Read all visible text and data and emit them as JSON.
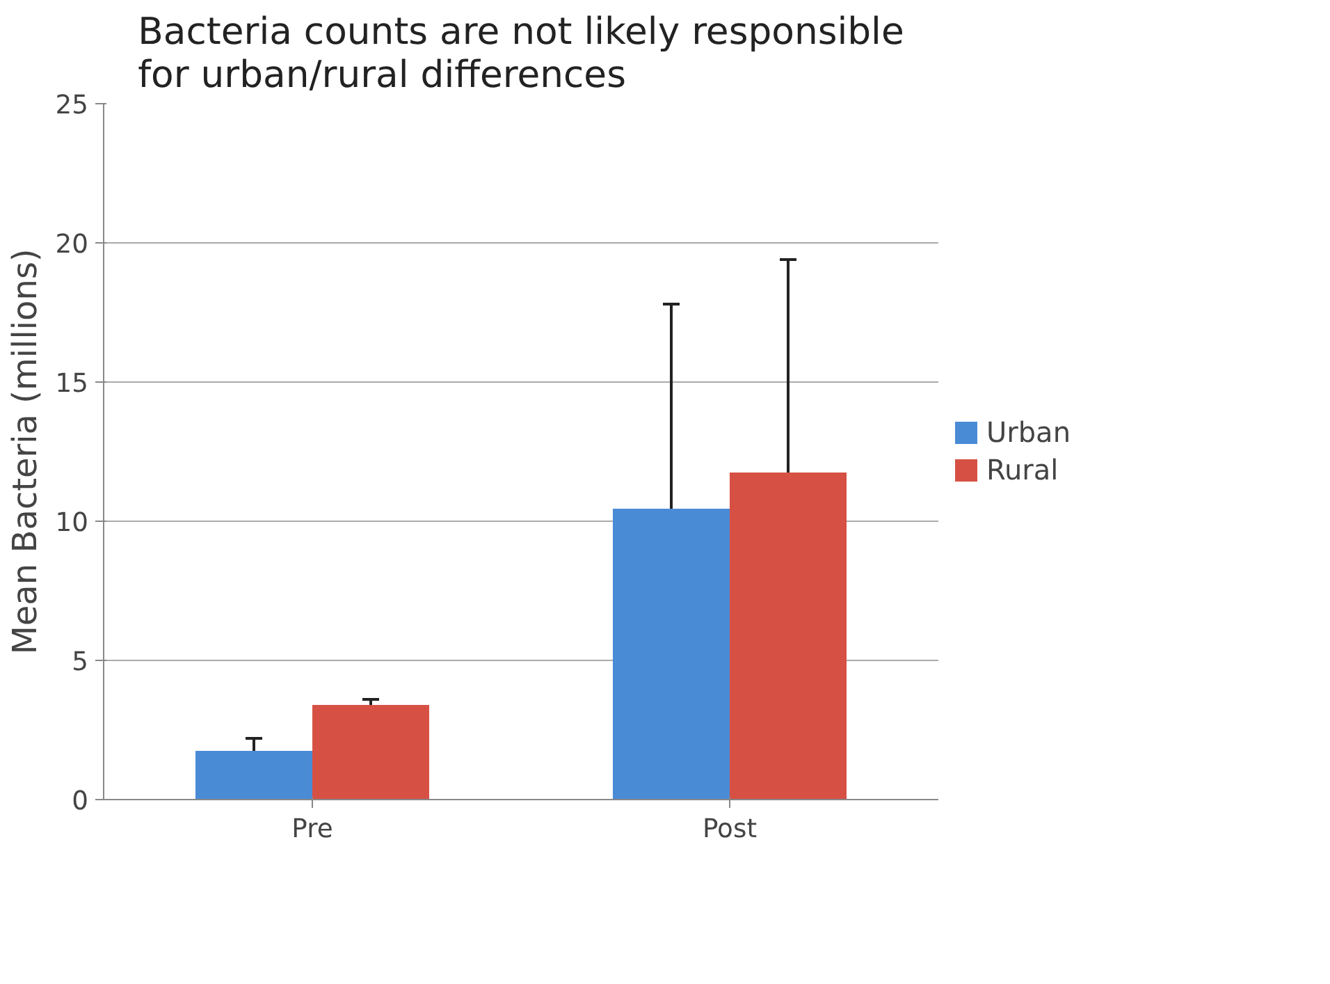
{
  "chart_data": {
    "type": "bar",
    "title": "Bacteria counts are not likely responsible\nfor urban/rural differences",
    "ylabel": "Mean Bacteria (millions)",
    "categories": [
      "Pre",
      "Post"
    ],
    "series": [
      {
        "name": "Urban",
        "color": "#4a8bd6",
        "values": [
          1.75,
          10.45
        ],
        "errors": [
          [
            1.75,
            2.2
          ],
          [
            10.45,
            17.8
          ]
        ]
      },
      {
        "name": "Rural",
        "color": "#d65144",
        "values": [
          3.4,
          11.75
        ],
        "errors": [
          [
            3.4,
            3.6
          ],
          [
            11.75,
            19.4
          ]
        ]
      }
    ],
    "ylim": [
      0,
      25
    ],
    "yticks": [
      0,
      5,
      10,
      15,
      20,
      25
    ],
    "grid": "y",
    "legend": "right"
  }
}
